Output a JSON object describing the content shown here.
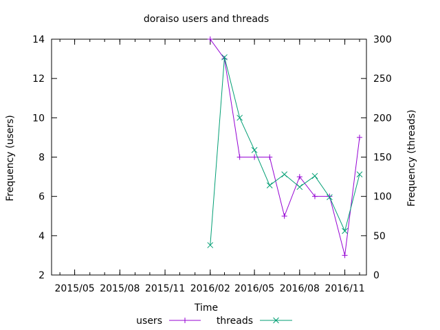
{
  "chart_data": {
    "type": "line",
    "title": "doraiso users and threads",
    "xlabel": "Time",
    "ylabel_left": "Frequency (users)",
    "ylabel_right": "Frequency (threads)",
    "x_ticks": [
      "2015/05",
      "2015/08",
      "2015/11",
      "2016/02",
      "2016/05",
      "2016/08",
      "2016/11"
    ],
    "x_range": [
      "2015-03-15",
      "2016-12-15"
    ],
    "y_left": {
      "range": [
        2,
        14
      ],
      "ticks": [
        2,
        4,
        6,
        8,
        10,
        12,
        14
      ]
    },
    "y_right": {
      "range": [
        0,
        300
      ],
      "ticks": [
        0,
        50,
        100,
        150,
        200,
        250,
        300
      ]
    },
    "grid": false,
    "legend": "bottom",
    "series": [
      {
        "name": "users",
        "axis": "left",
        "color": "#9400d3",
        "marker": "plus",
        "x": [
          "2016-02-01",
          "2016-03-01",
          "2016-04-01",
          "2016-05-01",
          "2016-06-01",
          "2016-07-01",
          "2016-08-01",
          "2016-09-01",
          "2016-10-01",
          "2016-11-01",
          "2016-12-01"
        ],
        "values": [
          14,
          13,
          8,
          8,
          8,
          5,
          7,
          6,
          6,
          3,
          9
        ]
      },
      {
        "name": "threads",
        "axis": "right",
        "color": "#009e73",
        "marker": "cross",
        "x": [
          "2016-02-01",
          "2016-03-01",
          "2016-04-01",
          "2016-05-01",
          "2016-06-01",
          "2016-07-01",
          "2016-08-01",
          "2016-09-01",
          "2016-10-01",
          "2016-11-01",
          "2016-12-01"
        ],
        "values": [
          38,
          277,
          200,
          159,
          114,
          128,
          112,
          126,
          99,
          56,
          128
        ]
      }
    ]
  }
}
